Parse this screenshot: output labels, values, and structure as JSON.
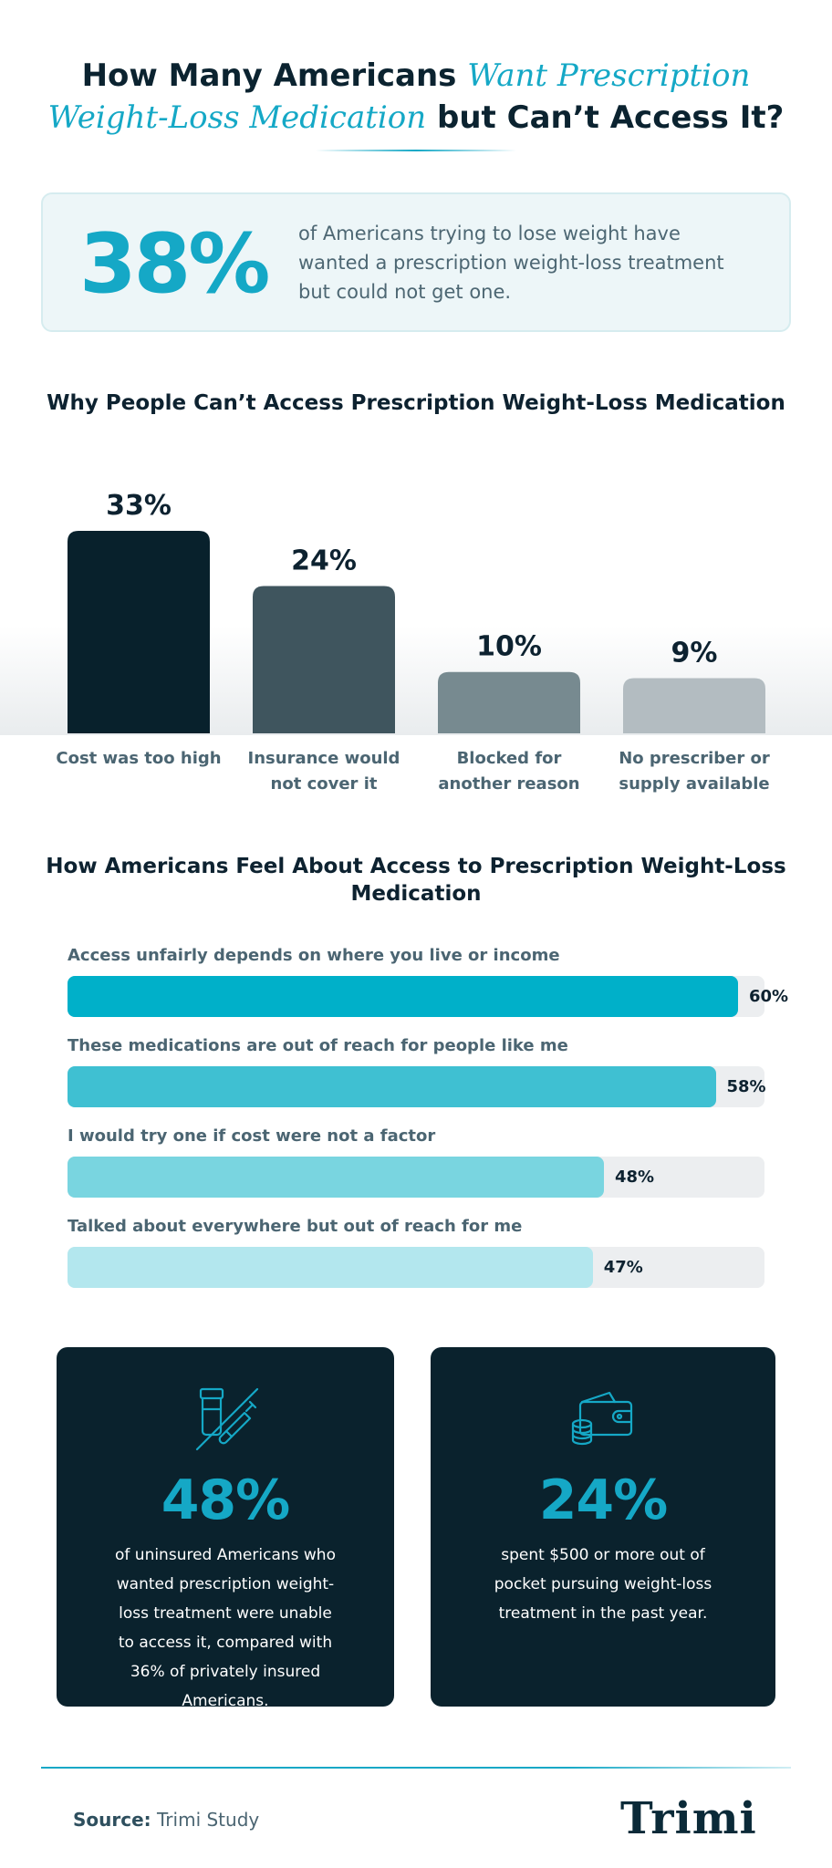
{
  "title": {
    "part1": "How Many Americans ",
    "highlight1": "Want Prescription",
    "highlight2": "Weight-Loss Medication",
    "part2": " but Can’t Access It?"
  },
  "headline_stat": {
    "value": "38%",
    "text": "of Americans trying to lose weight have wanted a prescription weight-loss treatment but could not get one."
  },
  "colors": {
    "accent": "#15a8c6",
    "dark": "#0a222d",
    "bar1": "#08212c",
    "bar2": "#3f555e",
    "bar3": "#778a90",
    "bar4": "#b3bcc1",
    "hbar1": "#00b0c9",
    "hbar2": "#3fc0d2",
    "hbar3": "#79d5e0",
    "hbar4": "#b3e7ee"
  },
  "chart_data": [
    {
      "type": "bar",
      "title": "Why People Can’t Access Prescription Weight-Loss Medication",
      "categories": [
        "Cost was too high",
        "Insurance would not cover it",
        "Blocked for another reason",
        "No prescriber or supply available"
      ],
      "values": [
        33,
        24,
        10,
        9
      ],
      "value_labels": [
        "33%",
        "24%",
        "10%",
        "9%"
      ],
      "unit": "%"
    },
    {
      "type": "bar",
      "orientation": "horizontal",
      "title": "How Americans Feel About Access to Prescription Weight-Loss Medication",
      "categories": [
        "Access unfairly depends on where you live or income",
        "These medications are out of reach for people like me",
        "I would try one if cost were not a factor",
        "Talked about everywhere but out of reach for me"
      ],
      "values": [
        60,
        58,
        48,
        47
      ],
      "value_labels": [
        "60%",
        "58%",
        "48%",
        "47%"
      ],
      "xlim": [
        0,
        100
      ],
      "unit": "%"
    }
  ],
  "cards": [
    {
      "icon": "crossed-out-syringe-icon",
      "value": "48%",
      "text": "of uninsured Americans who wanted prescription weight-loss treatment were unable to access it, compared with 36% of privately insured Americans."
    },
    {
      "icon": "wallet-coins-icon",
      "value": "24%",
      "text": "spent $500 or more out of pocket pursuing weight-loss treatment in the past year."
    }
  ],
  "footer": {
    "source_label": "Source:",
    "source_value": " Trimi Study",
    "logo": "Trimi"
  }
}
